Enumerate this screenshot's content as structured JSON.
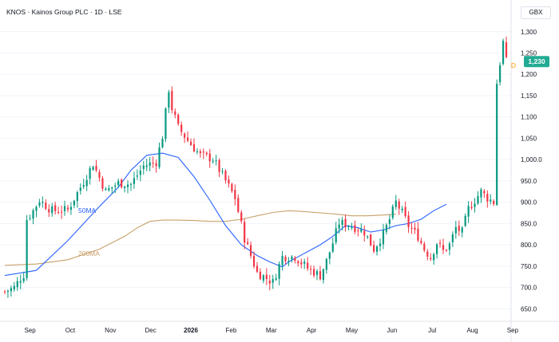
{
  "header": {
    "title": "KNOS · Kainos Group PLC · 1D · LSE",
    "currency": "GBX"
  },
  "colors": {
    "up": "#089981",
    "down": "#f23645",
    "ma50": "#2962ff",
    "ma200": "#c8a06a",
    "price_tag": "#22ab94",
    "dividend_marker": "#ff9800",
    "grid": "#f0f3fa",
    "axis_text": "#131722"
  },
  "chart_data": {
    "type": "candlestick",
    "symbol": "KNOS",
    "timeframe": "1D",
    "x_tick_labels": [
      "Sep",
      "Oct",
      "Nov",
      "Dec",
      "2026",
      "Feb",
      "Mar",
      "Apr",
      "May",
      "Jun",
      "Jul",
      "Aug",
      "Sep"
    ],
    "y_tick_labels": [
      "1,300",
      "1,250",
      "1,200",
      "1,150",
      "1,100",
      "1,050",
      "1,000.0",
      "950.0",
      "900.0",
      "850.0",
      "800.0",
      "750.0",
      "700.0",
      "650.0"
    ],
    "y_ticks": [
      1300,
      1250,
      1200,
      1150,
      1100,
      1050,
      1000,
      950,
      900,
      850,
      800,
      750,
      700,
      650
    ],
    "ylim": [
      630,
      1322
    ],
    "last_price": 1230,
    "last_price_label": "1,230",
    "dividend_marker_label": "D",
    "ma_labels": [
      {
        "name": "50MA",
        "key": "ma50"
      },
      {
        "name": "200MA",
        "key": "ma200"
      }
    ],
    "price_path": [
      [
        0,
        690
      ],
      [
        3,
        700
      ],
      [
        5,
        722
      ],
      [
        6,
        730
      ],
      [
        7,
        860
      ],
      [
        9,
        880
      ],
      [
        11,
        905
      ],
      [
        15,
        880
      ],
      [
        20,
        882
      ],
      [
        24,
        935
      ],
      [
        28,
        990
      ],
      [
        32,
        925
      ],
      [
        36,
        945
      ],
      [
        40,
        942
      ],
      [
        44,
        985
      ],
      [
        48,
        995
      ],
      [
        50,
        1055
      ],
      [
        52,
        1165
      ],
      [
        53,
        1120
      ],
      [
        55,
        1075
      ],
      [
        58,
        1045
      ],
      [
        62,
        1010
      ],
      [
        66,
        1002
      ],
      [
        70,
        950
      ],
      [
        73,
        910
      ],
      [
        76,
        815
      ],
      [
        80,
        735
      ],
      [
        85,
        712
      ],
      [
        88,
        772
      ],
      [
        92,
        772
      ],
      [
        96,
        745
      ],
      [
        100,
        728
      ],
      [
        102,
        762
      ],
      [
        104,
        805
      ],
      [
        106,
        852
      ],
      [
        110,
        845
      ],
      [
        114,
        830
      ],
      [
        117,
        790
      ],
      [
        120,
        825
      ],
      [
        122,
        860
      ],
      [
        124,
        900
      ],
      [
        126,
        875
      ],
      [
        128,
        845
      ],
      [
        131,
        820
      ],
      [
        133,
        790
      ],
      [
        135,
        770
      ],
      [
        137,
        805
      ],
      [
        139,
        785
      ],
      [
        141,
        800
      ],
      [
        143,
        840
      ],
      [
        145,
        830
      ],
      [
        147,
        885
      ],
      [
        149,
        905
      ],
      [
        151,
        925
      ],
      [
        153,
        910
      ],
      [
        155,
        900
      ],
      [
        156,
        1180
      ],
      [
        158,
        1275
      ],
      [
        159,
        1230
      ]
    ],
    "ma50": [
      [
        0,
        728
      ],
      [
        10,
        740
      ],
      [
        20,
        810
      ],
      [
        30,
        890
      ],
      [
        36,
        935
      ],
      [
        40,
        975
      ],
      [
        45,
        1010
      ],
      [
        50,
        1015
      ],
      [
        55,
        1005
      ],
      [
        60,
        960
      ],
      [
        65,
        905
      ],
      [
        70,
        845
      ],
      [
        75,
        800
      ],
      [
        80,
        775
      ],
      [
        84,
        760
      ],
      [
        88,
        748
      ],
      [
        90,
        760
      ],
      [
        95,
        780
      ],
      [
        100,
        800
      ],
      [
        104,
        820
      ],
      [
        108,
        845
      ],
      [
        112,
        840
      ],
      [
        116,
        830
      ],
      [
        120,
        835
      ],
      [
        124,
        845
      ],
      [
        128,
        850
      ],
      [
        132,
        860
      ],
      [
        136,
        880
      ],
      [
        140,
        895
      ]
    ],
    "ma200": [
      [
        0,
        752
      ],
      [
        10,
        755
      ],
      [
        20,
        765
      ],
      [
        30,
        790
      ],
      [
        38,
        820
      ],
      [
        42,
        840
      ],
      [
        46,
        855
      ],
      [
        50,
        858
      ],
      [
        55,
        858
      ],
      [
        60,
        857
      ],
      [
        65,
        855
      ],
      [
        70,
        855
      ],
      [
        75,
        860
      ],
      [
        80,
        868
      ],
      [
        85,
        876
      ],
      [
        90,
        880
      ],
      [
        95,
        878
      ],
      [
        100,
        875
      ],
      [
        105,
        872
      ],
      [
        110,
        868
      ],
      [
        115,
        868
      ],
      [
        120,
        870
      ],
      [
        124,
        872
      ]
    ]
  }
}
